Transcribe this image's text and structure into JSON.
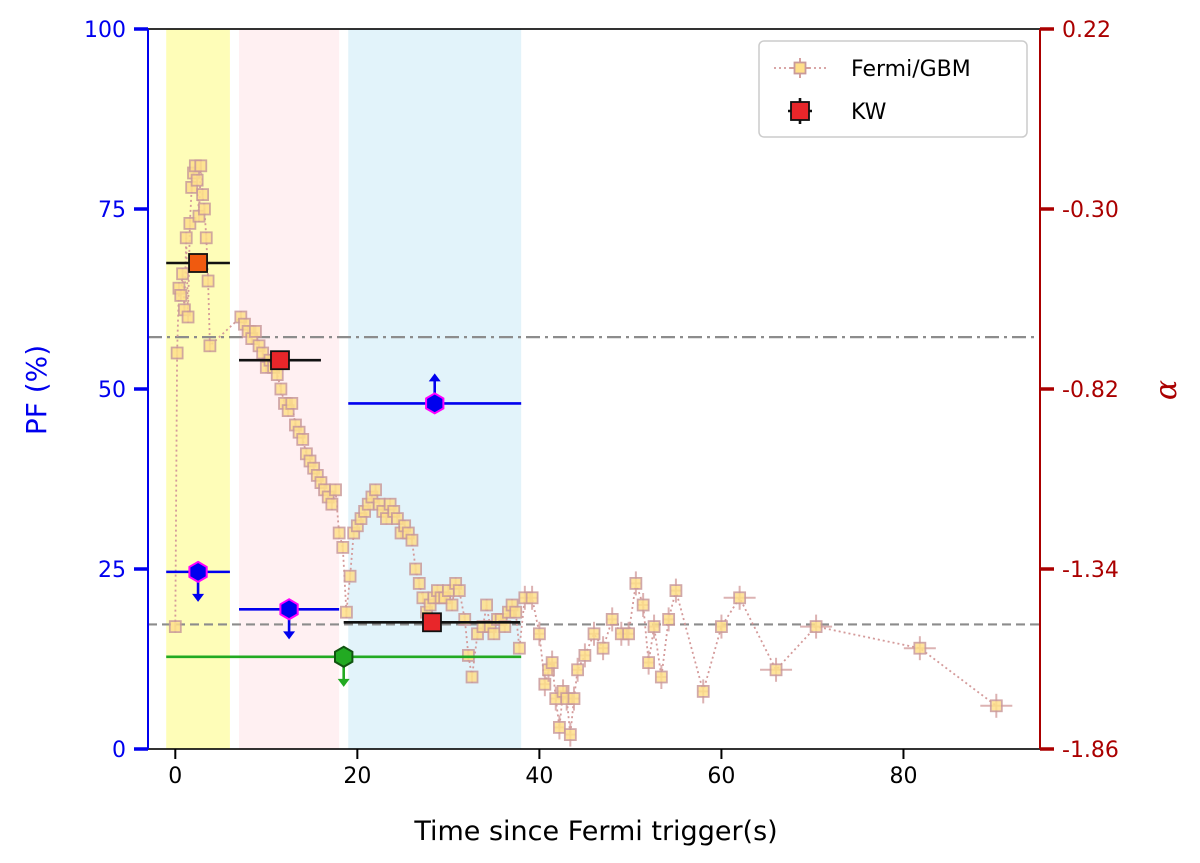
{
  "chart_data": {
    "type": "scatter",
    "xlabel": "Time since Fermi trigger(s)",
    "ylabel_left": "PF (%)",
    "ylabel_right": "α",
    "xlim": [
      -3,
      95
    ],
    "ylim_left": [
      0,
      100
    ],
    "ylim_right": [
      -1.86,
      0.22
    ],
    "x_ticks": [
      0,
      20,
      40,
      60,
      80
    ],
    "left_ticks": [
      0,
      25,
      50,
      75,
      100
    ],
    "right_ticks": [
      "0.22",
      "-0.30",
      "-0.82",
      "-1.34",
      "-1.86"
    ],
    "right_tick_values": [
      0.22,
      -0.3,
      -0.82,
      -1.34,
      -1.86
    ],
    "colors": {
      "left_axis": "#0000ee",
      "right_axis": "#aa0000",
      "gbm_edge": "#c99a9a",
      "gbm_face": "#ffe08a",
      "kw_face": "#e8262a",
      "kw_face_first": "#f05a0f",
      "limit_blue": "#0000ee",
      "limit_green": "#22aa22"
    },
    "shaded_regions": [
      {
        "name": "yellow",
        "x": [
          -1,
          6
        ],
        "color": "#fefdb8"
      },
      {
        "name": "pink",
        "x": [
          7,
          18
        ],
        "color": "#fff0f2"
      },
      {
        "name": "blue",
        "x": [
          19,
          38
        ],
        "color": "#e2f3fa"
      }
    ],
    "reference_lines": [
      {
        "name": "dashdot",
        "y": 57.2,
        "style": "dashdot"
      },
      {
        "name": "dashed",
        "y": 17.3,
        "style": "dashed"
      }
    ],
    "legend": {
      "position": "upper right",
      "entries": [
        "Fermi/GBM",
        "KW"
      ]
    },
    "series": [
      {
        "name": "Fermi/GBM",
        "points": [
          [
            0.0,
            17
          ],
          [
            0.2,
            55
          ],
          [
            0.4,
            64
          ],
          [
            0.6,
            63
          ],
          [
            0.8,
            66
          ],
          [
            1.0,
            61
          ],
          [
            1.2,
            71
          ],
          [
            1.4,
            60
          ],
          [
            1.6,
            73
          ],
          [
            1.8,
            78
          ],
          [
            2.0,
            80
          ],
          [
            2.2,
            81
          ],
          [
            2.4,
            79
          ],
          [
            2.6,
            74
          ],
          [
            2.8,
            81
          ],
          [
            3.0,
            77
          ],
          [
            3.2,
            75
          ],
          [
            3.4,
            71
          ],
          [
            3.6,
            65
          ],
          [
            3.8,
            56
          ],
          [
            7.2,
            60
          ],
          [
            7.6,
            59
          ],
          [
            8.0,
            58
          ],
          [
            8.4,
            57
          ],
          [
            8.8,
            58
          ],
          [
            9.2,
            56
          ],
          [
            9.6,
            55
          ],
          [
            10.0,
            53
          ],
          [
            10.4,
            54
          ],
          [
            10.8,
            53
          ],
          [
            11.2,
            52
          ],
          [
            11.6,
            50
          ],
          [
            12.0,
            48
          ],
          [
            12.4,
            47
          ],
          [
            12.8,
            48
          ],
          [
            13.2,
            45
          ],
          [
            13.6,
            44
          ],
          [
            14.0,
            43
          ],
          [
            14.4,
            41
          ],
          [
            14.8,
            40
          ],
          [
            15.2,
            39
          ],
          [
            15.6,
            38
          ],
          [
            16.0,
            37
          ],
          [
            16.4,
            36
          ],
          [
            16.8,
            35
          ],
          [
            17.2,
            34
          ],
          [
            17.6,
            36
          ],
          [
            18.0,
            30
          ],
          [
            18.4,
            28
          ],
          [
            18.8,
            19
          ],
          [
            19.2,
            24
          ],
          [
            19.6,
            30
          ],
          [
            20.0,
            31
          ],
          [
            20.4,
            32
          ],
          [
            20.8,
            33
          ],
          [
            21.2,
            34
          ],
          [
            21.6,
            35
          ],
          [
            22.0,
            36
          ],
          [
            22.4,
            34
          ],
          [
            22.8,
            33
          ],
          [
            23.2,
            32
          ],
          [
            23.6,
            34
          ],
          [
            24.0,
            33
          ],
          [
            24.4,
            32
          ],
          [
            24.8,
            30
          ],
          [
            25.2,
            31
          ],
          [
            25.6,
            30
          ],
          [
            26.0,
            29
          ],
          [
            26.4,
            25
          ],
          [
            26.8,
            23
          ],
          [
            27.2,
            21
          ],
          [
            27.6,
            19
          ],
          [
            28.0,
            20
          ],
          [
            28.4,
            21
          ],
          [
            28.8,
            22
          ],
          [
            29.2,
            21
          ],
          [
            29.6,
            21
          ],
          [
            30.0,
            22
          ],
          [
            30.4,
            20
          ],
          [
            30.8,
            23
          ],
          [
            31.2,
            22
          ],
          [
            31.8,
            18
          ],
          [
            32.2,
            13
          ],
          [
            32.6,
            10
          ],
          [
            33.2,
            16
          ],
          [
            33.8,
            17
          ],
          [
            34.2,
            20
          ],
          [
            34.6,
            17
          ],
          [
            35.0,
            16
          ],
          [
            35.4,
            18
          ],
          [
            35.8,
            18
          ],
          [
            36.2,
            17
          ],
          [
            36.6,
            19
          ],
          [
            37.0,
            20
          ],
          [
            37.4,
            19
          ],
          [
            37.8,
            14
          ],
          [
            38.4,
            21
          ],
          [
            39.2,
            21
          ],
          [
            40.0,
            16
          ],
          [
            40.6,
            9
          ],
          [
            41.0,
            11
          ],
          [
            41.4,
            12
          ],
          [
            41.8,
            7
          ],
          [
            42.2,
            3
          ],
          [
            42.6,
            8
          ],
          [
            43.0,
            7
          ],
          [
            43.4,
            2
          ],
          [
            43.8,
            7
          ],
          [
            44.2,
            11
          ],
          [
            45.0,
            13
          ],
          [
            46.0,
            16
          ],
          [
            47.0,
            14
          ],
          [
            48.0,
            18
          ],
          [
            49.0,
            16
          ],
          [
            49.8,
            16
          ],
          [
            50.6,
            23
          ],
          [
            51.4,
            20
          ],
          [
            52.0,
            12
          ],
          [
            52.6,
            17
          ],
          [
            53.4,
            10
          ],
          [
            54.2,
            18
          ],
          [
            55.0,
            22
          ],
          [
            58.0,
            8
          ],
          [
            60.0,
            17
          ],
          [
            62.0,
            21
          ],
          [
            66.0,
            11
          ],
          [
            70.4,
            17
          ],
          [
            81.8,
            14
          ],
          [
            90.2,
            6
          ]
        ]
      },
      {
        "name": "KW",
        "points": [
          {
            "x": 2.5,
            "y": 67.5,
            "xerr": [
              3.5,
              3.5
            ],
            "color": "kw_face_first"
          },
          {
            "x": 11.5,
            "y": 54,
            "xerr": [
              4.5,
              4.5
            ],
            "color": "kw_face"
          },
          {
            "x": 28.2,
            "y": 17.6,
            "xerr": [
              9.7,
              9.7
            ],
            "color": "kw_face"
          }
        ]
      },
      {
        "name": "limits",
        "points": [
          {
            "x": 2.5,
            "y": 24.6,
            "xerr": [
              3.5,
              3.5
            ],
            "direction": "down",
            "color": "limit_blue"
          },
          {
            "x": 12.5,
            "y": 19.4,
            "xerr": [
              5.5,
              5.5
            ],
            "direction": "down",
            "color": "limit_blue"
          },
          {
            "x": 28.5,
            "y": 48,
            "xerr": [
              9.5,
              9.5
            ],
            "direction": "up",
            "color": "limit_blue"
          },
          {
            "x": 18.5,
            "y": 12.8,
            "xerr": [
              19.5,
              19.5
            ],
            "direction": "down",
            "color": "limit_green"
          }
        ]
      }
    ]
  }
}
